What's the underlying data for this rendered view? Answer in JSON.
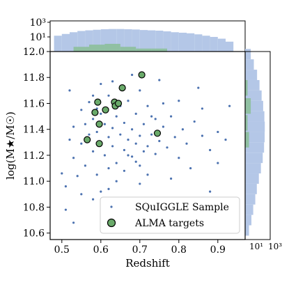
{
  "chart_data": {
    "type": "scatter",
    "xlabel": "Redshift",
    "ylabel": "log(M★/M☉)",
    "xlim": [
      0.47,
      0.97
    ],
    "ylim": [
      10.55,
      12.0
    ],
    "x_ticks": [
      "0.5",
      "0.6",
      "0.7",
      "0.8",
      "0.9"
    ],
    "y_ticks": [
      "10.6",
      "10.8",
      "11.0",
      "11.2",
      "11.4",
      "11.6",
      "11.8",
      "12.0"
    ],
    "top_hist_ticks": [
      "10¹",
      "10³"
    ],
    "right_hist_ticks": [
      "10¹",
      "10³"
    ],
    "legend_position": "lower-right",
    "colors": {
      "sample": "#4c72b0",
      "sample_hist": "#b4c7e7",
      "alma": "#6aaa6a",
      "alma_hist": "#8cbf9a"
    },
    "series": [
      {
        "name": "SQuIGGLE Sample",
        "marker": "small-dot",
        "note_density": "dense cloud centred near z=0.65, log M=11.4",
        "points": [
          [
            0.5,
            11.06
          ],
          [
            0.51,
            10.96
          ],
          [
            0.52,
            11.32
          ],
          [
            0.53,
            11.42
          ],
          [
            0.53,
            11.18
          ],
          [
            0.54,
            11.04
          ],
          [
            0.55,
            11.55
          ],
          [
            0.55,
            11.29
          ],
          [
            0.56,
            11.44
          ],
          [
            0.56,
            11.12
          ],
          [
            0.57,
            11.36
          ],
          [
            0.57,
            11.61
          ],
          [
            0.58,
            11.23
          ],
          [
            0.58,
            11.48
          ],
          [
            0.59,
            11.05
          ],
          [
            0.59,
            11.38
          ],
          [
            0.6,
            11.3
          ],
          [
            0.6,
            11.52
          ],
          [
            0.61,
            11.2
          ],
          [
            0.61,
            11.44
          ],
          [
            0.62,
            11.34
          ],
          [
            0.62,
            11.66
          ],
          [
            0.63,
            11.27
          ],
          [
            0.63,
            11.41
          ],
          [
            0.64,
            11.14
          ],
          [
            0.64,
            11.5
          ],
          [
            0.65,
            11.36
          ],
          [
            0.65,
            11.58
          ],
          [
            0.66,
            11.24
          ],
          [
            0.66,
            11.45
          ],
          [
            0.67,
            11.32
          ],
          [
            0.67,
            11.62
          ],
          [
            0.68,
            11.19
          ],
          [
            0.68,
            11.4
          ],
          [
            0.69,
            11.29
          ],
          [
            0.69,
            11.52
          ],
          [
            0.7,
            11.35
          ],
          [
            0.7,
            11.12
          ],
          [
            0.71,
            11.44
          ],
          [
            0.72,
            11.27
          ],
          [
            0.72,
            11.58
          ],
          [
            0.73,
            11.36
          ],
          [
            0.74,
            11.21
          ],
          [
            0.74,
            11.48
          ],
          [
            0.75,
            11.31
          ],
          [
            0.76,
            11.42
          ],
          [
            0.77,
            11.26
          ],
          [
            0.78,
            11.5
          ],
          [
            0.79,
            11.34
          ],
          [
            0.8,
            11.18
          ],
          [
            0.81,
            11.4
          ],
          [
            0.82,
            11.29
          ],
          [
            0.84,
            11.46
          ],
          [
            0.86,
            11.35
          ],
          [
            0.88,
            11.24
          ],
          [
            0.9,
            11.38
          ],
          [
            0.52,
            11.7
          ],
          [
            0.6,
            11.75
          ],
          [
            0.68,
            11.82
          ],
          [
            0.75,
            11.78
          ],
          [
            0.85,
            11.72
          ],
          [
            0.93,
            11.58
          ],
          [
            0.51,
            10.78
          ],
          [
            0.53,
            10.68
          ],
          [
            0.58,
            10.86
          ],
          [
            0.62,
            10.94
          ],
          [
            0.65,
            10.82
          ],
          [
            0.7,
            10.98
          ],
          [
            0.78,
            11.02
          ],
          [
            0.88,
            10.92
          ],
          [
            0.55,
            10.9
          ],
          [
            0.6,
            10.92
          ],
          [
            0.64,
            11.0
          ],
          [
            0.66,
            11.08
          ],
          [
            0.72,
            11.05
          ],
          [
            0.83,
            11.1
          ],
          [
            0.9,
            11.14
          ],
          [
            0.92,
            11.32
          ],
          [
            0.58,
            11.66
          ],
          [
            0.7,
            11.7
          ],
          [
            0.8,
            11.62
          ],
          [
            0.86,
            11.56
          ],
          [
            0.63,
            11.77
          ],
          [
            0.67,
            11.2
          ],
          [
            0.69,
            11.15
          ],
          [
            0.71,
            11.23
          ],
          [
            0.73,
            11.5
          ],
          [
            0.76,
            11.6
          ],
          [
            0.62,
            11.1
          ],
          [
            0.59,
            11.56
          ]
        ]
      },
      {
        "name": "ALMA targets",
        "marker": "large-circle",
        "points": [
          [
            0.565,
            11.32
          ],
          [
            0.585,
            11.53
          ],
          [
            0.592,
            11.61
          ],
          [
            0.596,
            11.44
          ],
          [
            0.596,
            11.29
          ],
          [
            0.612,
            11.55
          ],
          [
            0.635,
            11.61
          ],
          [
            0.637,
            11.58
          ],
          [
            0.645,
            11.6
          ],
          [
            0.655,
            11.72
          ],
          [
            0.705,
            11.82
          ],
          [
            0.745,
            11.37
          ]
        ]
      }
    ],
    "top_histogram": {
      "scale": "log",
      "sample_bins": [
        [
          0.49,
          40
        ],
        [
          0.51,
          60
        ],
        [
          0.53,
          90
        ],
        [
          0.55,
          120
        ],
        [
          0.57,
          140
        ],
        [
          0.59,
          160
        ],
        [
          0.61,
          180
        ],
        [
          0.63,
          190
        ],
        [
          0.65,
          190
        ],
        [
          0.67,
          180
        ],
        [
          0.69,
          170
        ],
        [
          0.71,
          150
        ],
        [
          0.73,
          140
        ],
        [
          0.75,
          130
        ],
        [
          0.77,
          110
        ],
        [
          0.79,
          90
        ],
        [
          0.81,
          80
        ],
        [
          0.83,
          70
        ],
        [
          0.85,
          55
        ],
        [
          0.87,
          40
        ],
        [
          0.89,
          30
        ],
        [
          0.91,
          20
        ],
        [
          0.93,
          10
        ]
      ],
      "alma_bins": [
        [
          0.55,
          3
        ],
        [
          0.59,
          5
        ],
        [
          0.63,
          6
        ],
        [
          0.67,
          3
        ],
        [
          0.71,
          2
        ],
        [
          0.75,
          2
        ]
      ]
    },
    "right_histogram": {
      "scale": "log",
      "sample_bins": [
        [
          10.62,
          3
        ],
        [
          10.7,
          6
        ],
        [
          10.78,
          10
        ],
        [
          10.86,
          18
        ],
        [
          10.94,
          28
        ],
        [
          11.02,
          50
        ],
        [
          11.1,
          90
        ],
        [
          11.18,
          150
        ],
        [
          11.26,
          220
        ],
        [
          11.34,
          260
        ],
        [
          11.42,
          270
        ],
        [
          11.5,
          240
        ],
        [
          11.58,
          170
        ],
        [
          11.66,
          110
        ],
        [
          11.74,
          60
        ],
        [
          11.82,
          30
        ],
        [
          11.9,
          12
        ],
        [
          11.98,
          5
        ]
      ],
      "alma_bins": [
        [
          11.32,
          3
        ],
        [
          11.45,
          2
        ],
        [
          11.58,
          5
        ],
        [
          11.72,
          2
        ],
        [
          11.82,
          1
        ]
      ]
    }
  }
}
